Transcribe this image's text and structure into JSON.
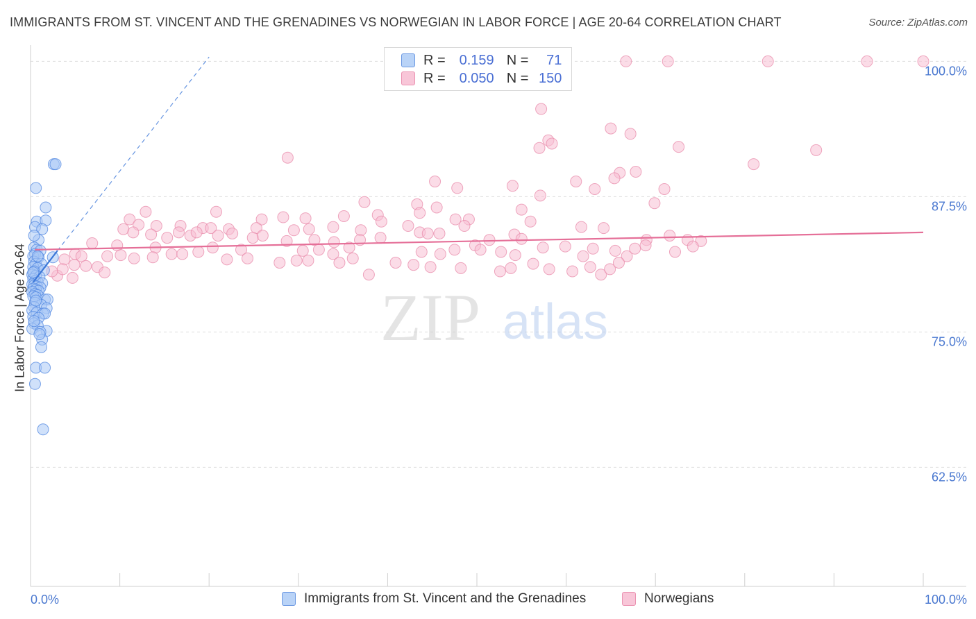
{
  "title": "IMMIGRANTS FROM ST. VINCENT AND THE GRENADINES VS NORWEGIAN IN LABOR FORCE | AGE 20-64 CORRELATION CHART",
  "source": "Source: ZipAtlas.com",
  "watermark": {
    "zip": "ZIP",
    "atlas": "atlas"
  },
  "legend": {
    "rows": [
      {
        "r_label": "R =",
        "r_value": "0.159",
        "n_label": "N =",
        "n_value": "71"
      },
      {
        "r_label": "R =",
        "r_value": "0.050",
        "n_label": "N =",
        "n_value": "150"
      }
    ]
  },
  "bottom_legend": {
    "series1": "Immigrants from St. Vincent and the Grenadines",
    "series2": "Norwegians"
  },
  "colors": {
    "blue_fill": "#a9c8f5",
    "blue_stroke": "#4f86e0",
    "blue_line": "#3d78d8",
    "pink_fill": "#f7bfd3",
    "pink_stroke": "#e88aaa",
    "pink_line": "#e56f98",
    "tick_text": "#4a78d0",
    "grid": "#dddddd"
  },
  "chart_data": {
    "type": "scatter",
    "xlabel": "",
    "ylabel": "In Labor Force | Age 20-64",
    "xlim": [
      0,
      100
    ],
    "ylim": [
      51.5,
      101.5
    ],
    "x_tick_labels": [
      "0.0%",
      "100.0%"
    ],
    "y_ticks": [
      62.5,
      75.0,
      87.5,
      100.0
    ],
    "y_tick_labels": [
      "62.5%",
      "75.0%",
      "87.5%",
      "100.0%"
    ],
    "grid": true,
    "legend_position": "top-center",
    "series": [
      {
        "name": "Immigrants from St. Vincent and the Grenadines",
        "r": 0.159,
        "n": 71,
        "trend": {
          "x": [
            0.3,
            3.0
          ],
          "y": [
            79.6,
            82.5
          ]
        },
        "trend_extension": {
          "x": [
            3.0,
            20.0
          ],
          "y": [
            82.5,
            100.4
          ]
        },
        "points": [
          [
            2.6,
            90.5
          ],
          [
            2.8,
            90.5
          ],
          [
            0.6,
            88.3
          ],
          [
            1.7,
            86.5
          ],
          [
            0.7,
            85.2
          ],
          [
            1.7,
            85.3
          ],
          [
            0.5,
            84.7
          ],
          [
            1.3,
            84.5
          ],
          [
            0.9,
            83.5
          ],
          [
            0.4,
            82.8
          ],
          [
            0.7,
            82.6
          ],
          [
            1.1,
            82.5
          ],
          [
            0.5,
            82.2
          ],
          [
            0.3,
            82.0
          ],
          [
            0.9,
            81.9
          ],
          [
            2.5,
            81.9
          ],
          [
            0.4,
            81.5
          ],
          [
            0.6,
            81.3
          ],
          [
            1.2,
            81.3
          ],
          [
            0.3,
            81.0
          ],
          [
            0.8,
            80.9
          ],
          [
            1.5,
            80.7
          ],
          [
            0.4,
            80.6
          ],
          [
            0.2,
            80.3
          ],
          [
            0.6,
            80.2
          ],
          [
            1.0,
            80.1
          ],
          [
            0.3,
            79.9
          ],
          [
            0.5,
            79.7
          ],
          [
            0.8,
            79.6
          ],
          [
            1.3,
            79.5
          ],
          [
            0.2,
            79.4
          ],
          [
            0.4,
            79.3
          ],
          [
            0.7,
            79.2
          ],
          [
            1.1,
            79.1
          ],
          [
            0.3,
            79.0
          ],
          [
            0.6,
            78.9
          ],
          [
            0.9,
            78.8
          ],
          [
            0.2,
            78.7
          ],
          [
            0.5,
            78.5
          ],
          [
            0.8,
            78.4
          ],
          [
            0.3,
            78.3
          ],
          [
            0.6,
            78.2
          ],
          [
            1.6,
            78.0
          ],
          [
            1.9,
            78.0
          ],
          [
            0.5,
            77.7
          ],
          [
            1.2,
            77.5
          ],
          [
            0.4,
            77.3
          ],
          [
            1.8,
            77.2
          ],
          [
            0.2,
            77.0
          ],
          [
            0.7,
            76.8
          ],
          [
            1.4,
            76.7
          ],
          [
            1.6,
            76.7
          ],
          [
            0.3,
            76.4
          ],
          [
            0.9,
            76.3
          ],
          [
            0.4,
            75.8
          ],
          [
            0.8,
            75.6
          ],
          [
            0.2,
            75.3
          ],
          [
            1.8,
            75.1
          ],
          [
            1.1,
            75.0
          ],
          [
            1.3,
            74.3
          ],
          [
            1.2,
            73.6
          ],
          [
            0.6,
            71.7
          ],
          [
            1.6,
            71.7
          ],
          [
            0.5,
            70.2
          ],
          [
            1.4,
            66.0
          ],
          [
            0.4,
            83.9
          ],
          [
            0.8,
            82.0
          ],
          [
            0.3,
            80.5
          ],
          [
            0.6,
            77.9
          ],
          [
            0.4,
            76.0
          ],
          [
            1.0,
            74.8
          ]
        ]
      },
      {
        "name": "Norwegians",
        "r": 0.05,
        "n": 150,
        "trend": {
          "x": [
            0.5,
            100.0
          ],
          "y": [
            82.6,
            84.2
          ]
        },
        "points": [
          [
            66.7,
            100.0
          ],
          [
            71.4,
            100.0
          ],
          [
            82.6,
            100.0
          ],
          [
            93.7,
            100.0
          ],
          [
            100.0,
            100.0
          ],
          [
            57.2,
            95.6
          ],
          [
            58.0,
            92.7
          ],
          [
            58.4,
            92.4
          ],
          [
            57.0,
            92.0
          ],
          [
            65.0,
            93.8
          ],
          [
            67.2,
            93.3
          ],
          [
            72.6,
            92.1
          ],
          [
            88.0,
            91.8
          ],
          [
            28.8,
            91.1
          ],
          [
            81.0,
            90.5
          ],
          [
            66.0,
            89.7
          ],
          [
            67.8,
            89.8
          ],
          [
            61.1,
            88.9
          ],
          [
            65.4,
            89.2
          ],
          [
            45.3,
            88.9
          ],
          [
            47.8,
            88.3
          ],
          [
            54.0,
            88.5
          ],
          [
            63.2,
            88.2
          ],
          [
            71.0,
            88.2
          ],
          [
            57.1,
            87.6
          ],
          [
            37.4,
            87.0
          ],
          [
            43.3,
            86.8
          ],
          [
            45.5,
            86.5
          ],
          [
            55.0,
            86.3
          ],
          [
            69.9,
            86.9
          ],
          [
            12.9,
            86.1
          ],
          [
            20.8,
            86.1
          ],
          [
            28.3,
            85.6
          ],
          [
            25.9,
            85.4
          ],
          [
            30.8,
            85.5
          ],
          [
            35.1,
            85.7
          ],
          [
            38.9,
            85.8
          ],
          [
            39.3,
            85.2
          ],
          [
            43.6,
            86.0
          ],
          [
            47.6,
            85.4
          ],
          [
            49.1,
            85.4
          ],
          [
            56.0,
            85.2
          ],
          [
            11.1,
            85.4
          ],
          [
            12.1,
            84.9
          ],
          [
            14.1,
            84.8
          ],
          [
            16.8,
            84.8
          ],
          [
            19.3,
            84.6
          ],
          [
            20.2,
            84.6
          ],
          [
            22.2,
            84.5
          ],
          [
            25.3,
            84.6
          ],
          [
            29.5,
            84.4
          ],
          [
            31.2,
            84.5
          ],
          [
            33.9,
            84.7
          ],
          [
            37.0,
            84.4
          ],
          [
            42.3,
            84.8
          ],
          [
            43.6,
            84.2
          ],
          [
            44.5,
            84.1
          ],
          [
            45.8,
            84.1
          ],
          [
            48.6,
            84.8
          ],
          [
            61.7,
            84.7
          ],
          [
            64.2,
            84.6
          ],
          [
            10.4,
            84.5
          ],
          [
            11.5,
            84.2
          ],
          [
            13.5,
            84.0
          ],
          [
            15.3,
            83.7
          ],
          [
            16.6,
            84.2
          ],
          [
            17.9,
            83.9
          ],
          [
            18.6,
            84.2
          ],
          [
            21.0,
            83.9
          ],
          [
            22.6,
            84.1
          ],
          [
            24.9,
            83.7
          ],
          [
            26.0,
            83.9
          ],
          [
            28.7,
            83.4
          ],
          [
            31.8,
            83.5
          ],
          [
            34.0,
            83.3
          ],
          [
            36.9,
            83.5
          ],
          [
            39.2,
            83.7
          ],
          [
            49.8,
            83.0
          ],
          [
            51.4,
            83.5
          ],
          [
            54.2,
            84.0
          ],
          [
            55.0,
            83.6
          ],
          [
            69.0,
            83.5
          ],
          [
            71.6,
            83.9
          ],
          [
            73.6,
            83.5
          ],
          [
            75.1,
            83.4
          ],
          [
            6.9,
            83.2
          ],
          [
            9.7,
            83.0
          ],
          [
            14.0,
            82.8
          ],
          [
            18.8,
            82.4
          ],
          [
            20.4,
            82.8
          ],
          [
            23.6,
            82.6
          ],
          [
            30.5,
            82.5
          ],
          [
            32.3,
            82.6
          ],
          [
            33.9,
            82.2
          ],
          [
            35.7,
            82.8
          ],
          [
            43.8,
            82.4
          ],
          [
            45.9,
            82.2
          ],
          [
            47.5,
            82.6
          ],
          [
            50.4,
            82.6
          ],
          [
            52.7,
            82.4
          ],
          [
            54.3,
            82.1
          ],
          [
            57.4,
            82.8
          ],
          [
            59.9,
            82.9
          ],
          [
            61.9,
            82.0
          ],
          [
            63.0,
            82.7
          ],
          [
            65.5,
            82.5
          ],
          [
            66.8,
            82.0
          ],
          [
            67.7,
            82.7
          ],
          [
            68.9,
            83.0
          ],
          [
            72.2,
            82.4
          ],
          [
            74.2,
            82.9
          ],
          [
            5.0,
            82.2
          ],
          [
            5.7,
            82.0
          ],
          [
            8.6,
            82.0
          ],
          [
            10.1,
            82.1
          ],
          [
            11.6,
            81.8
          ],
          [
            13.7,
            81.9
          ],
          [
            15.8,
            82.2
          ],
          [
            17.0,
            82.2
          ],
          [
            22.0,
            81.7
          ],
          [
            24.3,
            81.8
          ],
          [
            27.9,
            81.4
          ],
          [
            29.8,
            81.6
          ],
          [
            31.1,
            81.6
          ],
          [
            34.6,
            81.4
          ],
          [
            36.1,
            81.8
          ],
          [
            40.9,
            81.4
          ],
          [
            42.9,
            81.2
          ],
          [
            44.8,
            81.0
          ],
          [
            48.2,
            80.9
          ],
          [
            52.6,
            80.6
          ],
          [
            53.8,
            80.9
          ],
          [
            56.3,
            81.3
          ],
          [
            58.1,
            80.8
          ],
          [
            60.7,
            80.6
          ],
          [
            62.7,
            81.0
          ],
          [
            63.9,
            80.3
          ],
          [
            64.9,
            80.8
          ],
          [
            65.9,
            81.4
          ],
          [
            3.8,
            81.7
          ],
          [
            4.9,
            81.2
          ],
          [
            6.2,
            81.1
          ],
          [
            7.5,
            81.0
          ],
          [
            8.3,
            80.5
          ],
          [
            3.0,
            80.2
          ],
          [
            3.6,
            80.8
          ],
          [
            2.4,
            80.6
          ],
          [
            4.7,
            80.0
          ],
          [
            37.9,
            80.3
          ]
        ]
      }
    ]
  }
}
